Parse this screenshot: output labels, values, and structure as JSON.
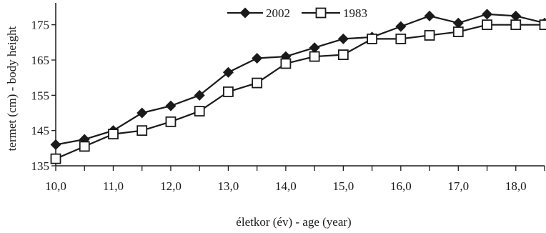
{
  "chart_data": {
    "type": "line",
    "title": "",
    "xlabel": "életkor (év) - age (year)",
    "ylabel": "termet (cm) - body height",
    "xlim": [
      10.0,
      18.5
    ],
    "ylim": [
      135,
      180
    ],
    "x_ticks": [
      10.0,
      10.5,
      11.0,
      11.5,
      12.0,
      12.5,
      13.0,
      13.5,
      14.0,
      14.5,
      15.0,
      15.5,
      16.0,
      16.5,
      17.0,
      17.5,
      18.0,
      18.5
    ],
    "x_tick_labels": [
      {
        "value": 10.0,
        "label": "10,0"
      },
      {
        "value": 11.0,
        "label": "11,0"
      },
      {
        "value": 12.0,
        "label": "12,0"
      },
      {
        "value": 13.0,
        "label": "13,0"
      },
      {
        "value": 14.0,
        "label": "14,0"
      },
      {
        "value": 15.0,
        "label": "15,0"
      },
      {
        "value": 16.0,
        "label": "16,0"
      },
      {
        "value": 17.0,
        "label": "17,0"
      },
      {
        "value": 18.0,
        "label": "18,0"
      }
    ],
    "y_ticks": [
      {
        "value": 135,
        "label": "135"
      },
      {
        "value": 145,
        "label": "145"
      },
      {
        "value": 155,
        "label": "155"
      },
      {
        "value": 165,
        "label": "165"
      },
      {
        "value": 175,
        "label": "175"
      }
    ],
    "grid": false,
    "legend_position": "top-center",
    "x": [
      10.0,
      10.5,
      11.0,
      11.5,
      12.0,
      12.5,
      13.0,
      13.5,
      14.0,
      14.5,
      15.0,
      15.5,
      16.0,
      16.5,
      17.0,
      17.5,
      18.0,
      18.5
    ],
    "series": [
      {
        "name": "2002",
        "marker": "filled-diamond",
        "color": "#1a1a1a",
        "values": [
          141.0,
          142.5,
          145.0,
          150.0,
          152.0,
          155.0,
          161.5,
          165.5,
          166.0,
          168.5,
          171.0,
          171.5,
          174.5,
          177.5,
          175.5,
          178.0,
          177.5,
          175.5
        ]
      },
      {
        "name": "1983",
        "marker": "open-square",
        "color": "#1a1a1a",
        "values": [
          137.0,
          140.5,
          144.0,
          145.0,
          147.5,
          150.5,
          156.0,
          158.5,
          164.0,
          166.0,
          166.5,
          171.0,
          171.0,
          172.0,
          173.0,
          175.0,
          175.0,
          175.0
        ]
      }
    ]
  }
}
